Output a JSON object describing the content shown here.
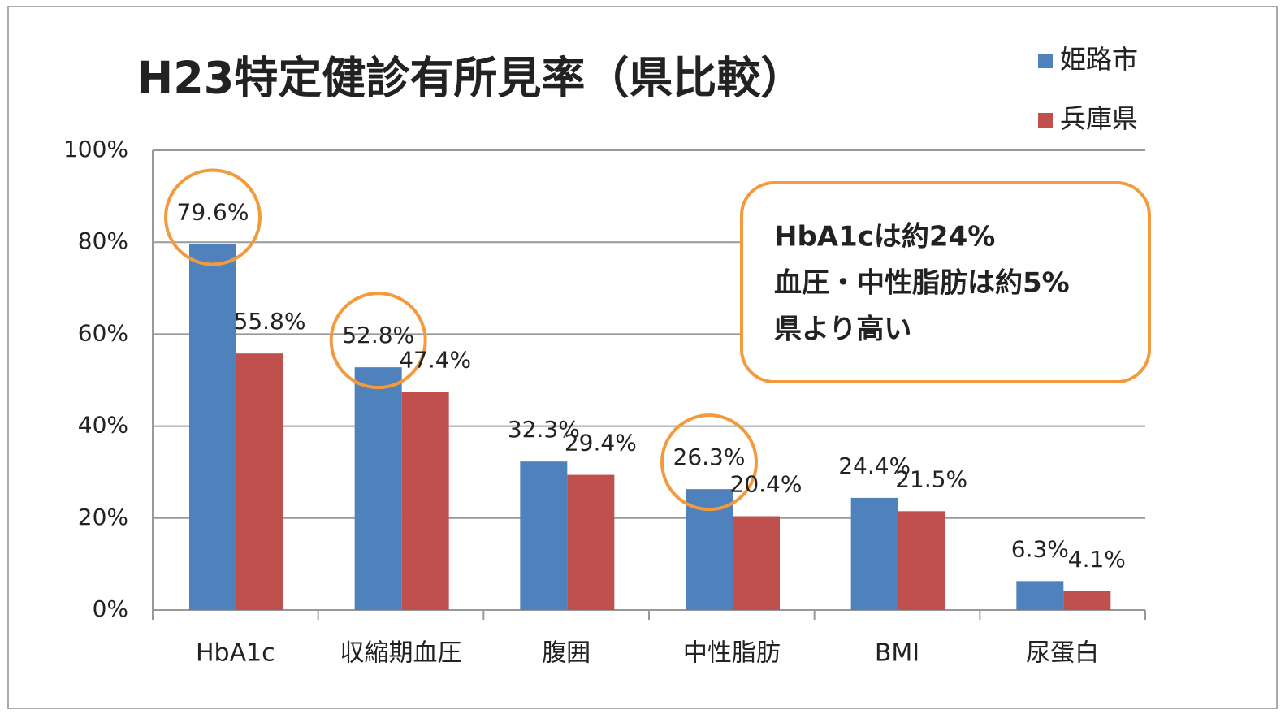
{
  "chart_data": {
    "type": "bar",
    "title": "H23特定健診有所見率（県比較）",
    "categories": [
      "HbA1c",
      "収縮期血圧",
      "腹囲",
      "中性脂肪",
      "BMI",
      "尿蛋白"
    ],
    "series": [
      {
        "name": "姫路市",
        "color": "#4f81bd",
        "values": [
          79.6,
          52.8,
          32.3,
          26.3,
          24.4,
          6.3
        ],
        "value_labels": [
          "79.6%",
          "52.8%",
          "32.3%",
          "26.3%",
          "24.4%",
          "6.3%"
        ]
      },
      {
        "name": "兵庫県",
        "color": "#c0504d",
        "values": [
          55.8,
          47.4,
          29.4,
          20.4,
          21.5,
          4.1
        ],
        "value_labels": [
          "55.8%",
          "47.4%",
          "29.4%",
          "20.4%",
          "21.5%",
          "4.1%"
        ]
      }
    ],
    "ylim": [
      0,
      100
    ],
    "yticks": [
      {
        "value": 0,
        "label": "0%"
      },
      {
        "value": 20,
        "label": "20%"
      },
      {
        "value": 40,
        "label": "40%"
      },
      {
        "value": 60,
        "label": "60%"
      },
      {
        "value": 80,
        "label": "80%"
      },
      {
        "value": 100,
        "label": "100%"
      }
    ],
    "grid": true,
    "legend": "top-right",
    "circled_categories": [
      "HbA1c",
      "収縮期血圧",
      "中性脂肪"
    ],
    "annotation": [
      "HbA1cは約24%",
      "血圧・中性脂肪は約5%",
      "県より高い"
    ]
  }
}
